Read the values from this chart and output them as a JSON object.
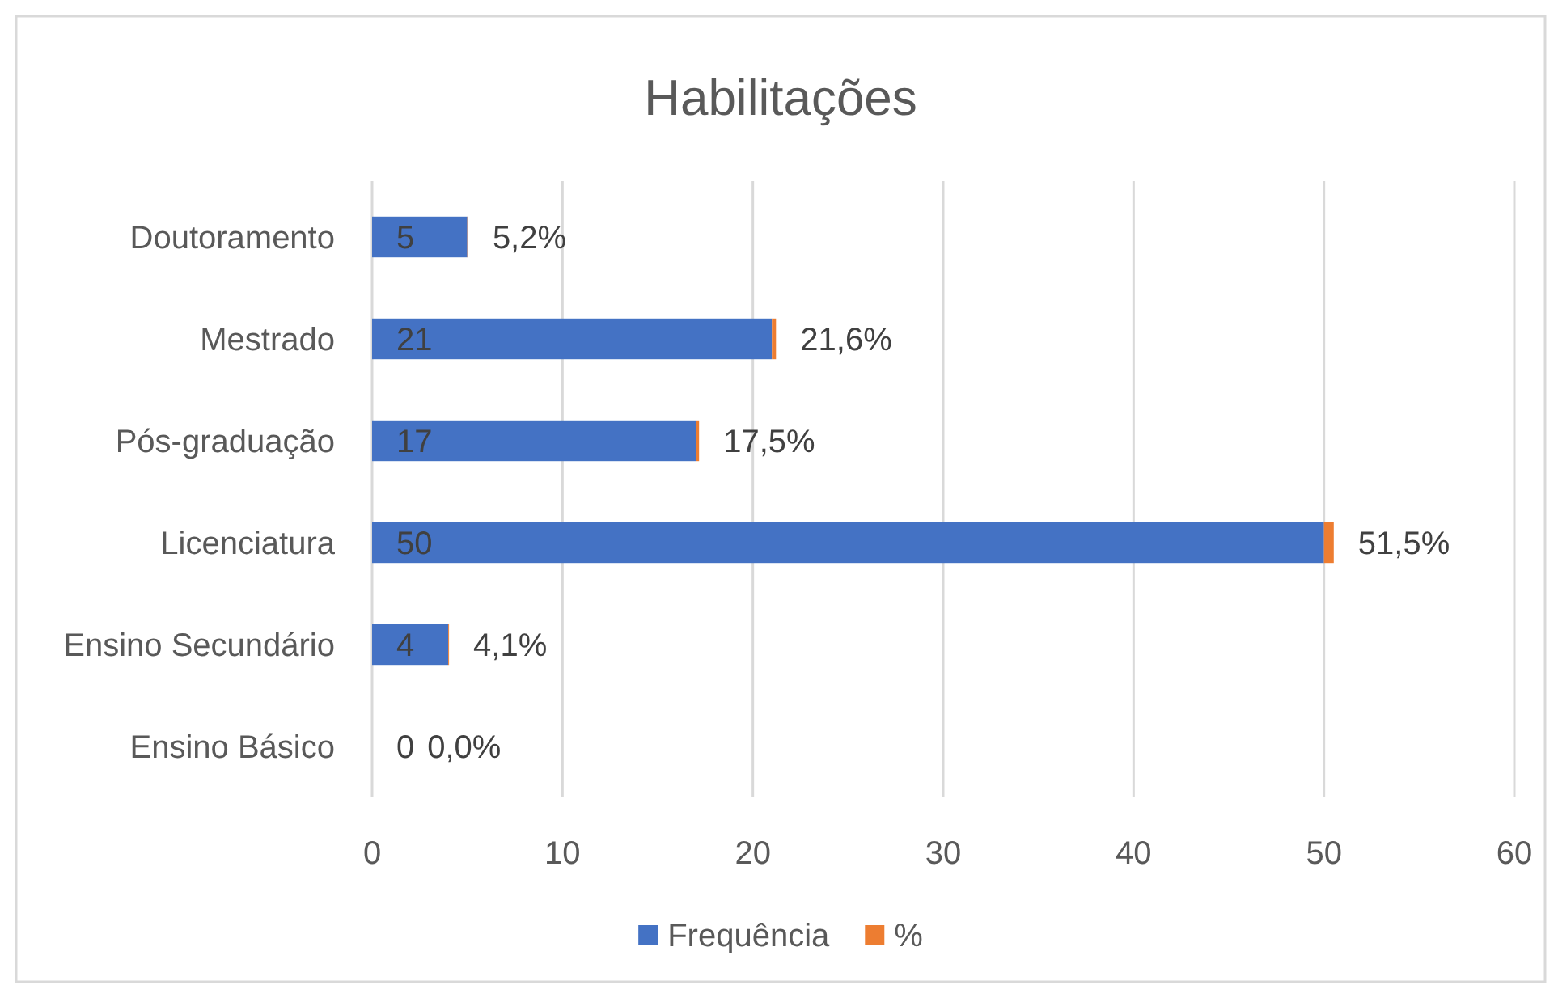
{
  "chart_data": {
    "type": "bar",
    "title": "Habilitações",
    "orientation": "horizontal",
    "stacked": true,
    "categories": [
      "Doutoramento",
      "Mestrado",
      "Pós-graduação",
      "Licenciatura",
      "Ensino Secundário",
      "Ensino Básico"
    ],
    "series": [
      {
        "name": "Frequência",
        "color": "#4472c4",
        "values": [
          5,
          21,
          17,
          50,
          4,
          0
        ],
        "value_labels": [
          "5",
          "21",
          "17",
          "50",
          "4",
          "0"
        ]
      },
      {
        "name": "%",
        "color": "#ed7d31",
        "values": [
          0.052,
          0.216,
          0.175,
          0.515,
          0.041,
          0
        ],
        "value_labels": [
          "5,2%",
          "21,6%",
          "17,5%",
          "51,5%",
          "4,1%",
          "0,0%"
        ]
      }
    ],
    "xlim": [
      0,
      60
    ],
    "xticks": [
      0,
      10,
      20,
      30,
      40,
      50,
      60
    ],
    "grid": "x",
    "legend": "bottom"
  }
}
